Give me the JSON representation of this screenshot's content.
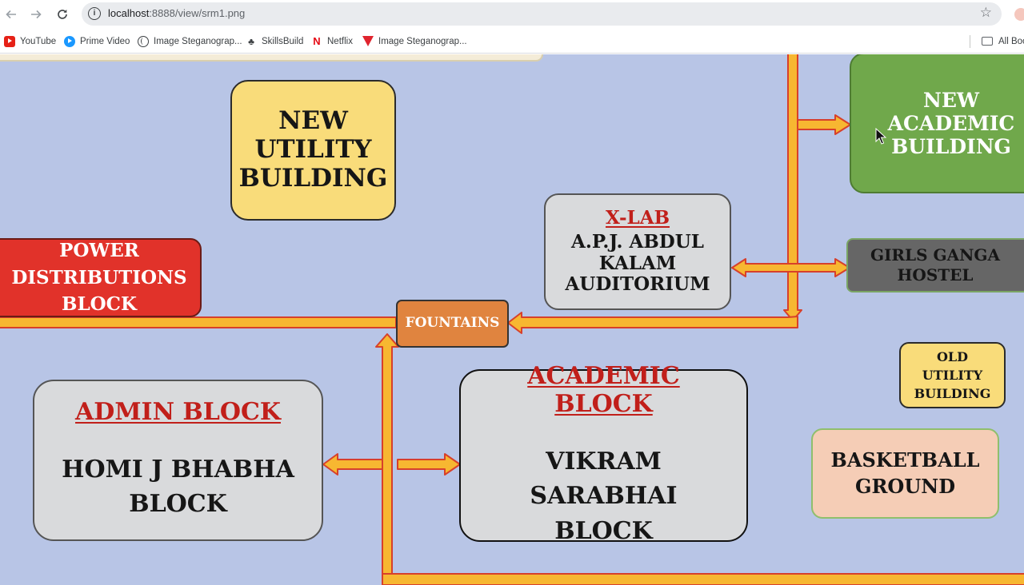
{
  "browser": {
    "url_host": "localhost",
    "url_rest": ":8888/view/srm1.png",
    "bookmarks": [
      {
        "label": "YouTube",
        "icon": "youtube-icon"
      },
      {
        "label": "Prime Video",
        "icon": "prime-video-icon"
      },
      {
        "label": "Image Steganograp...",
        "icon": "globe-icon"
      },
      {
        "label": "SkillsBuild",
        "icon": "skillsbuild-icon"
      },
      {
        "label": "Netflix",
        "icon": "netflix-icon"
      },
      {
        "label": "Image Steganograp...",
        "icon": "steg-v-icon"
      }
    ],
    "all_bookmarks_label": "All Boo"
  },
  "map": {
    "new_utility": "NEW UTILITY BUILDING",
    "new_academic": "NEW ACADEMIC BUILDING",
    "xlab_title": "X-LAB",
    "xlab_body": "A.P.J. ABDUL KALAM AUDITORIUM",
    "girls_hostel": "GIRLS GANGA HOSTEL",
    "power_block": "POWER DISTRIBUTIONS BLOCK",
    "fountains": "FOUNTAINS",
    "old_utility": "OLD UTILITY BUILDING",
    "admin_title": "ADMIN BLOCK",
    "admin_body": "HOMI J BHABHA BLOCK",
    "academic_title": "ACADEMIC BLOCK",
    "academic_body": "VIKRAM SARABHAI BLOCK",
    "basketball": "BASKETBALL GROUND"
  },
  "colors": {
    "map_background": "#b8c5e6",
    "path": "#f7b731",
    "path_outline": "#d7402b",
    "new_utility": "#f9dc7a",
    "new_academic": "#70a84b",
    "power_block": "#e1322a",
    "fountains": "#e0843f",
    "girls_hostel": "#666666",
    "old_utility": "#f9dc7a",
    "basketball": "#f5cdb6",
    "gray_block": "#d9dadc"
  }
}
